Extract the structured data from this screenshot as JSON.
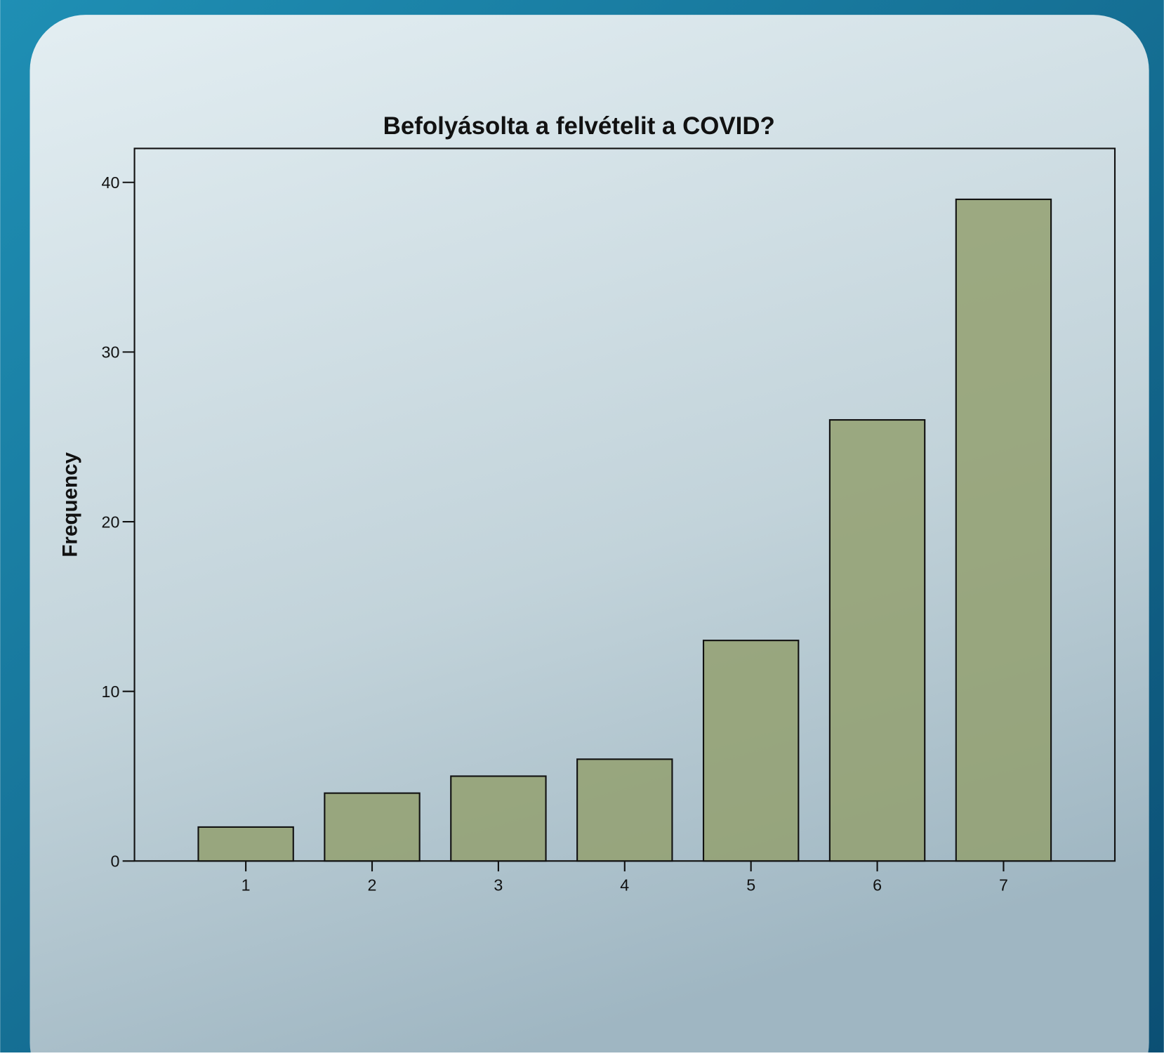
{
  "chart_data": {
    "type": "bar",
    "title": "Befolyásolta a felvételit a COVID?",
    "y_label": "Frequency",
    "categories": [
      "1",
      "2",
      "3",
      "4",
      "5",
      "6",
      "7"
    ],
    "values": [
      2,
      4,
      5,
      6,
      13,
      26,
      39
    ],
    "color": "#93a070",
    "ylim": [
      0,
      42
    ],
    "yticks": [
      0,
      10,
      20,
      30,
      40
    ]
  }
}
